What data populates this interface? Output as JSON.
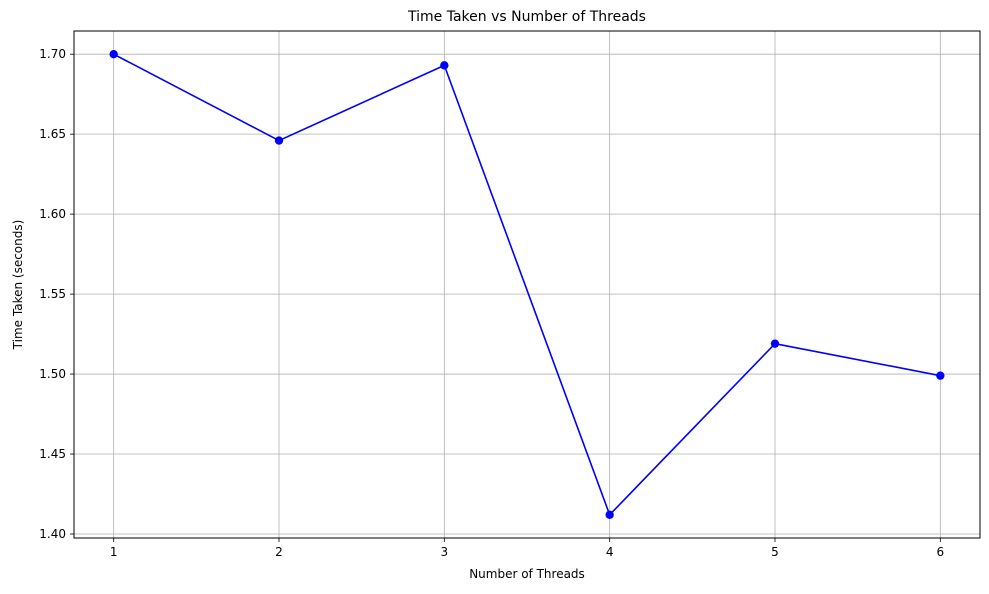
{
  "chart_data": {
    "type": "line",
    "title": "Time Taken vs Number of Threads",
    "xlabel": "Number of Threads",
    "ylabel": "Time Taken (seconds)",
    "x": [
      1,
      2,
      3,
      4,
      5,
      6
    ],
    "series": [
      {
        "values": [
          1.7,
          1.646,
          1.693,
          1.412,
          1.519,
          1.499
        ],
        "color": "#0000ff",
        "marker": "circle"
      }
    ],
    "xlim": [
      0.76,
      6.24
    ],
    "ylim": [
      1.3975,
      1.7145
    ],
    "xticks": [
      "1",
      "2",
      "3",
      "4",
      "5",
      "6"
    ],
    "yticks": [
      "1.40",
      "1.45",
      "1.50",
      "1.55",
      "1.60",
      "1.65",
      "1.70"
    ],
    "ytick_values": [
      1.4,
      1.45,
      1.5,
      1.55,
      1.6,
      1.65,
      1.7
    ],
    "grid": true,
    "legend": "none"
  }
}
